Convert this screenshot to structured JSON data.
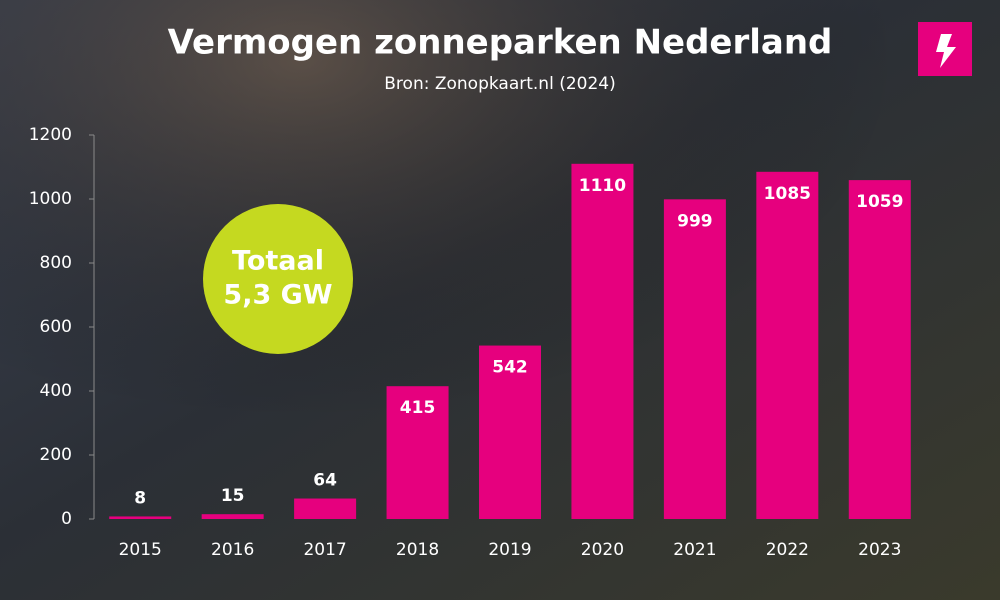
{
  "chart_data": {
    "type": "bar",
    "title": "Vermogen zonneparken Nederland",
    "subtitle": "Bron: Zonopkaart.nl (2024)",
    "categories": [
      "2015",
      "2016",
      "2017",
      "2018",
      "2019",
      "2020",
      "2021",
      "2022",
      "2023"
    ],
    "values": [
      8,
      15,
      64,
      415,
      542,
      1110,
      999,
      1085,
      1059
    ],
    "color": "#e6007e",
    "ylim": [
      0,
      1200
    ],
    "yticks": [
      0,
      200,
      400,
      600,
      800,
      1000,
      1200
    ],
    "annotations": [
      "Totaal",
      "5,3 GW"
    ]
  }
}
